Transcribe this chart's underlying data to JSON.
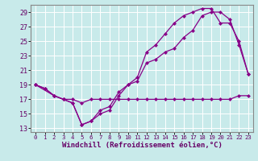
{
  "background_color": "#c8eaea",
  "grid_color": "#ffffff",
  "line_color": "#880088",
  "spine_color": "#888888",
  "tick_color": "#660066",
  "xlim": [
    -0.5,
    23.5
  ],
  "ylim": [
    12.5,
    30.0
  ],
  "yticks": [
    13,
    15,
    17,
    19,
    21,
    23,
    25,
    27,
    29
  ],
  "xticks": [
    0,
    1,
    2,
    3,
    4,
    5,
    6,
    7,
    8,
    9,
    10,
    11,
    12,
    13,
    14,
    15,
    16,
    17,
    18,
    19,
    20,
    21,
    22,
    23
  ],
  "xlabel": "Windchill (Refroidissement éolien,°C)",
  "xlabel_fontsize": 6.5,
  "ytick_fontsize": 6.0,
  "xtick_fontsize": 5.2,
  "series1_x": [
    0,
    1,
    2,
    3,
    4,
    5,
    6,
    7,
    8,
    9,
    10,
    11,
    12,
    13,
    14,
    15,
    16,
    17,
    18,
    19,
    20,
    21,
    22,
    23
  ],
  "series1_y": [
    19.0,
    18.5,
    17.5,
    17.0,
    17.0,
    16.5,
    17.0,
    17.0,
    17.0,
    17.0,
    17.0,
    17.0,
    17.0,
    17.0,
    17.0,
    17.0,
    17.0,
    17.0,
    17.0,
    17.0,
    17.0,
    17.0,
    17.5,
    17.5
  ],
  "series2_x": [
    0,
    1,
    2,
    3,
    4,
    5,
    6,
    7,
    8,
    9,
    10,
    11,
    12,
    13,
    14,
    15,
    16,
    17,
    18,
    19,
    20,
    21,
    22,
    23
  ],
  "series2_y": [
    19.0,
    18.5,
    17.5,
    17.0,
    16.5,
    13.5,
    14.0,
    15.0,
    15.5,
    17.5,
    19.0,
    19.5,
    22.0,
    22.5,
    23.5,
    24.0,
    25.5,
    26.5,
    28.5,
    29.0,
    29.0,
    28.0,
    24.5,
    20.5
  ],
  "series3_x": [
    0,
    2,
    3,
    4,
    5,
    6,
    7,
    8,
    9,
    10,
    11,
    12,
    13,
    14,
    15,
    16,
    17,
    18,
    19,
    20,
    21,
    22,
    23
  ],
  "series3_y": [
    19.0,
    17.5,
    17.0,
    16.5,
    13.5,
    14.0,
    15.5,
    16.0,
    18.0,
    19.0,
    20.0,
    23.5,
    24.5,
    26.0,
    27.5,
    28.5,
    29.0,
    29.5,
    29.5,
    27.5,
    27.5,
    25.0,
    20.5
  ]
}
